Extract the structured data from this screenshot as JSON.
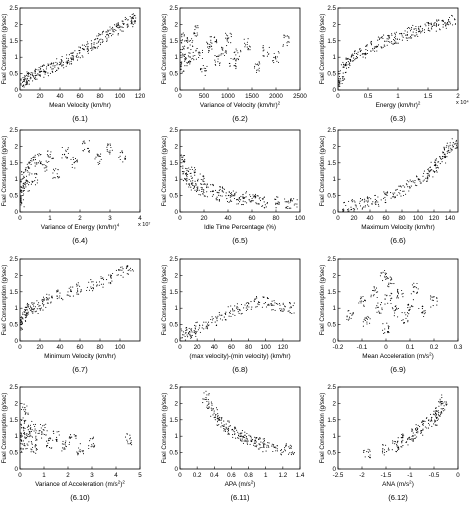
{
  "chart_data": [
    {
      "type": "scatter",
      "caption": "(6.1)",
      "xlabel": "Mean Velocity (km/hr)",
      "ylabel": "Fuel Consumption (g/sec)",
      "xlim": [
        0,
        120
      ],
      "ylim": [
        0,
        2.5
      ],
      "xticks": [
        0,
        20,
        40,
        60,
        80,
        100,
        120
      ],
      "yticks": [
        0,
        0.5,
        1,
        1.5,
        2,
        2.5
      ],
      "exp": "",
      "series": [
        {
          "x": [
            2,
            5,
            8,
            10,
            14,
            18,
            22,
            25,
            30,
            35,
            40,
            45,
            50,
            55,
            60,
            65,
            70,
            75,
            80,
            85,
            90,
            95,
            100,
            105,
            110,
            115
          ],
          "y": [
            0.2,
            0.3,
            0.35,
            0.4,
            0.45,
            0.5,
            0.55,
            0.6,
            0.65,
            0.7,
            0.78,
            0.85,
            0.95,
            1.05,
            1.15,
            1.25,
            1.35,
            1.45,
            1.55,
            1.65,
            1.75,
            1.85,
            1.95,
            2.05,
            2.1,
            2.2
          ]
        }
      ]
    },
    {
      "type": "scatter",
      "caption": "(6.2)",
      "xlabel": "Variance of Velocity (km/hr)",
      "xlabelsup": "2",
      "ylabel": "Fuel Consumption (g/sec)",
      "xlim": [
        0,
        2500
      ],
      "ylim": [
        0,
        2.5
      ],
      "xticks": [
        0,
        500,
        1000,
        1500,
        2000,
        2500
      ],
      "yticks": [
        0,
        0.5,
        1,
        1.5,
        2,
        2.5
      ],
      "exp": "",
      "series": [
        {
          "x": [
            20,
            60,
            100,
            150,
            200,
            250,
            300,
            400,
            500,
            600,
            700,
            800,
            900,
            1000,
            1100,
            1200,
            1400,
            1600,
            1800,
            2000,
            2200
          ],
          "y": [
            0.7,
            1.2,
            1.6,
            0.9,
            1.4,
            1.0,
            1.8,
            1.1,
            0.6,
            1.3,
            1.5,
            0.9,
            1.2,
            1.6,
            0.8,
            1.1,
            1.4,
            0.7,
            1.2,
            1.0,
            1.5
          ]
        }
      ]
    },
    {
      "type": "scatter",
      "caption": "(6.3)",
      "xlabel": "Energy (km/hr)",
      "xlabelsup": "2",
      "ylabel": "Fuel Consumption (g/sec)",
      "xlim": [
        0,
        2
      ],
      "ylim": [
        0,
        2.5
      ],
      "xticks": [
        0,
        0.5,
        1,
        1.5,
        2
      ],
      "yticks": [
        0,
        0.5,
        1,
        1.5,
        2,
        2.5
      ],
      "exp": "x 10⁴",
      "series": [
        {
          "x": [
            0.01,
            0.05,
            0.1,
            0.15,
            0.2,
            0.3,
            0.4,
            0.5,
            0.6,
            0.7,
            0.8,
            0.9,
            1.0,
            1.1,
            1.2,
            1.3,
            1.4,
            1.5,
            1.6,
            1.7,
            1.8,
            1.9
          ],
          "y": [
            0.25,
            0.45,
            0.7,
            0.85,
            0.95,
            1.05,
            1.15,
            1.25,
            1.35,
            1.45,
            1.5,
            1.55,
            1.6,
            1.65,
            1.75,
            1.8,
            1.85,
            1.9,
            1.95,
            2.0,
            2.05,
            2.1
          ]
        }
      ]
    },
    {
      "type": "scatter",
      "caption": "(6.4)",
      "xlabel": "Variance of Energy (km/hr)",
      "xlabelsup": "4",
      "ylabel": "Fuel Consumption (g/sec)",
      "xlim": [
        0,
        4
      ],
      "ylim": [
        0,
        2.5
      ],
      "xticks": [
        0,
        1,
        2,
        3,
        4
      ],
      "yticks": [
        0,
        0.5,
        1,
        1.5,
        2,
        2.5
      ],
      "exp": "x 10⁷",
      "series": [
        {
          "x": [
            0.02,
            0.05,
            0.1,
            0.15,
            0.2,
            0.3,
            0.4,
            0.5,
            0.6,
            0.8,
            1.0,
            1.2,
            1.5,
            1.8,
            2.2,
            2.6,
            3.0,
            3.4
          ],
          "y": [
            0.3,
            0.6,
            0.9,
            1.1,
            0.8,
            1.3,
            1.5,
            1.0,
            1.6,
            1.4,
            1.7,
            1.2,
            1.8,
            1.5,
            2.0,
            1.6,
            1.9,
            1.7
          ]
        }
      ]
    },
    {
      "type": "scatter",
      "caption": "(6.5)",
      "xlabel": "Idle Time Percentage  (%)",
      "ylabel": "Fuel Consumption (g/sec)",
      "xlim": [
        0,
        100
      ],
      "ylim": [
        0,
        2.5
      ],
      "xticks": [
        0,
        20,
        40,
        60,
        80,
        100
      ],
      "yticks": [
        0,
        0.5,
        1,
        1.5,
        2,
        2.5
      ],
      "exp": "",
      "series": [
        {
          "x": [
            1,
            3,
            5,
            8,
            10,
            12,
            15,
            18,
            20,
            25,
            30,
            35,
            40,
            45,
            50,
            55,
            60,
            65,
            70,
            80,
            90,
            95
          ],
          "y": [
            1.6,
            1.3,
            1.1,
            0.9,
            1.2,
            0.8,
            0.7,
            1.0,
            0.6,
            0.7,
            0.5,
            0.6,
            0.45,
            0.5,
            0.4,
            0.45,
            0.35,
            0.4,
            0.3,
            0.3,
            0.25,
            0.25
          ]
        }
      ]
    },
    {
      "type": "scatter",
      "caption": "(6.6)",
      "xlabel": "Maximum Velocity  (km/hr)",
      "ylabel": "Fuel Consumption (g/sec)",
      "xlim": [
        0,
        150
      ],
      "ylim": [
        0,
        2.5
      ],
      "xticks": [
        0,
        20,
        40,
        60,
        80,
        100,
        120,
        140
      ],
      "yticks": [
        0,
        0.5,
        1,
        1.5,
        2,
        2.5
      ],
      "exp": "",
      "series": [
        {
          "x": [
            10,
            20,
            30,
            40,
            50,
            60,
            70,
            80,
            90,
            100,
            110,
            115,
            120,
            125,
            130,
            135,
            140,
            145
          ],
          "y": [
            0.15,
            0.2,
            0.25,
            0.3,
            0.35,
            0.45,
            0.55,
            0.65,
            0.8,
            0.95,
            1.1,
            1.2,
            1.35,
            1.5,
            1.65,
            1.8,
            1.95,
            2.1
          ]
        }
      ]
    },
    {
      "type": "scatter",
      "caption": "(6.7)",
      "xlabel": "Minimum Velocity  (km/hr)",
      "ylabel": "Fuel Consumption (g/sec)",
      "xlim": [
        0,
        120
      ],
      "ylim": [
        0,
        2.5
      ],
      "xticks": [
        0,
        20,
        40,
        60,
        80,
        100
      ],
      "yticks": [
        0,
        0.5,
        1,
        1.5,
        2,
        2.5
      ],
      "exp": "",
      "series": [
        {
          "x": [
            0,
            2,
            5,
            8,
            10,
            15,
            20,
            25,
            30,
            40,
            50,
            60,
            70,
            80,
            90,
            100,
            110
          ],
          "y": [
            0.5,
            0.7,
            0.8,
            0.9,
            1.0,
            1.0,
            1.1,
            1.2,
            1.3,
            1.4,
            1.5,
            1.6,
            1.7,
            1.8,
            1.9,
            2.1,
            2.2
          ]
        }
      ]
    },
    {
      "type": "scatter",
      "caption": "(6.8)",
      "xlabel": "(max velocity)-(min velocity)  (km/hr)",
      "ylabel": "Fuel Consumption (g/sec)",
      "xlim": [
        0,
        140
      ],
      "ylim": [
        0,
        2.5
      ],
      "xticks": [
        0,
        20,
        40,
        60,
        80,
        100,
        120
      ],
      "yticks": [
        0,
        0.5,
        1,
        1.5,
        2,
        2.5
      ],
      "exp": "",
      "series": [
        {
          "x": [
            5,
            10,
            15,
            20,
            30,
            40,
            50,
            60,
            70,
            80,
            90,
            100,
            110,
            120,
            130
          ],
          "y": [
            0.2,
            0.25,
            0.3,
            0.4,
            0.5,
            0.6,
            0.8,
            0.9,
            1.0,
            1.1,
            1.2,
            1.2,
            1.1,
            1.0,
            1.0
          ]
        }
      ]
    },
    {
      "type": "scatter",
      "caption": "(6.9)",
      "xlabel": "Mean  Acceleration  (m/s",
      "xlabelsup": "2",
      "xlabelend": ")",
      "ylabel": "Fuel Consumption (g/sec)",
      "xlim": [
        -0.2,
        0.3
      ],
      "ylim": [
        0,
        2.5
      ],
      "xticks": [
        -0.2,
        -0.1,
        0,
        0.1,
        0.2,
        0.3
      ],
      "yticks": [
        0,
        0.5,
        1,
        1.5,
        2,
        2.5
      ],
      "exp": "",
      "series": [
        {
          "x": [
            -0.15,
            -0.1,
            -0.08,
            -0.05,
            -0.03,
            -0.01,
            0,
            0.01,
            0.02,
            0.04,
            0.06,
            0.08,
            0.1,
            0.12,
            0.15,
            0.2
          ],
          "y": [
            0.8,
            1.2,
            0.6,
            1.5,
            1.0,
            2.0,
            0.4,
            1.3,
            1.8,
            0.9,
            1.4,
            0.7,
            1.1,
            1.6,
            0.9,
            1.2
          ]
        }
      ]
    },
    {
      "type": "scatter",
      "caption": "(6.10)",
      "xlabel": "Variance of Acceleration (m/s",
      "xlabelsup": "2",
      "xlabelend": ")",
      "xlabelsup2": "2",
      "ylabel": "Fuel Consumption (g/sec)",
      "xlim": [
        0,
        5
      ],
      "ylim": [
        0,
        2.5
      ],
      "xticks": [
        0,
        1,
        2,
        3,
        4,
        5
      ],
      "yticks": [
        0,
        0.5,
        1,
        1.5,
        2,
        2.5
      ],
      "exp": "",
      "series": [
        {
          "x": [
            0.05,
            0.1,
            0.15,
            0.2,
            0.3,
            0.4,
            0.5,
            0.6,
            0.8,
            1.0,
            1.2,
            1.5,
            1.8,
            2.2,
            2.5,
            3.0,
            4.5
          ],
          "y": [
            1.0,
            1.4,
            0.7,
            1.8,
            1.1,
            0.9,
            1.3,
            0.6,
            1.0,
            1.2,
            0.8,
            1.0,
            0.7,
            0.9,
            0.6,
            0.8,
            0.9
          ]
        }
      ]
    },
    {
      "type": "scatter",
      "caption": "(6.11)",
      "xlabel": "APA  (m/s",
      "xlabelsup": "2",
      "xlabelend": ")",
      "ylabel": "Fuel Consumption (g/sec)",
      "xlim": [
        0,
        1.4
      ],
      "ylim": [
        0,
        2.5
      ],
      "xticks": [
        0,
        0.2,
        0.4,
        0.6,
        0.8,
        1,
        1.2,
        1.4
      ],
      "yticks": [
        0,
        0.5,
        1,
        1.5,
        2,
        2.5
      ],
      "exp": "",
      "series": [
        {
          "x": [
            0.3,
            0.35,
            0.4,
            0.45,
            0.5,
            0.55,
            0.6,
            0.65,
            0.7,
            0.75,
            0.8,
            0.85,
            0.9,
            0.95,
            1.0,
            1.1,
            1.2,
            1.3
          ],
          "y": [
            2.2,
            1.9,
            1.7,
            1.5,
            1.4,
            1.3,
            1.2,
            1.1,
            1.0,
            0.95,
            0.9,
            0.85,
            0.8,
            0.75,
            0.7,
            0.65,
            0.6,
            0.55
          ]
        }
      ]
    },
    {
      "type": "scatter",
      "caption": "(6.12)",
      "xlabel": "ANA  (m/s",
      "xlabelsup": "2",
      "xlabelend": ")",
      "ylabel": "Fuel Consumption (g/sec)",
      "xlim": [
        -2.5,
        0
      ],
      "ylim": [
        0,
        2.5
      ],
      "xticks": [
        -2.5,
        -2,
        -1.5,
        -1,
        -0.5,
        0
      ],
      "yticks": [
        0,
        0.5,
        1,
        1.5,
        2,
        2.5
      ],
      "exp": "",
      "series": [
        {
          "x": [
            -1.9,
            -1.5,
            -1.3,
            -1.2,
            -1.1,
            -1.0,
            -0.9,
            -0.8,
            -0.7,
            -0.6,
            -0.5,
            -0.45,
            -0.4,
            -0.35,
            -0.3
          ],
          "y": [
            0.5,
            0.6,
            0.7,
            0.8,
            0.9,
            1.0,
            1.1,
            1.2,
            1.3,
            1.4,
            1.5,
            1.6,
            1.7,
            1.9,
            2.1
          ]
        }
      ]
    }
  ]
}
